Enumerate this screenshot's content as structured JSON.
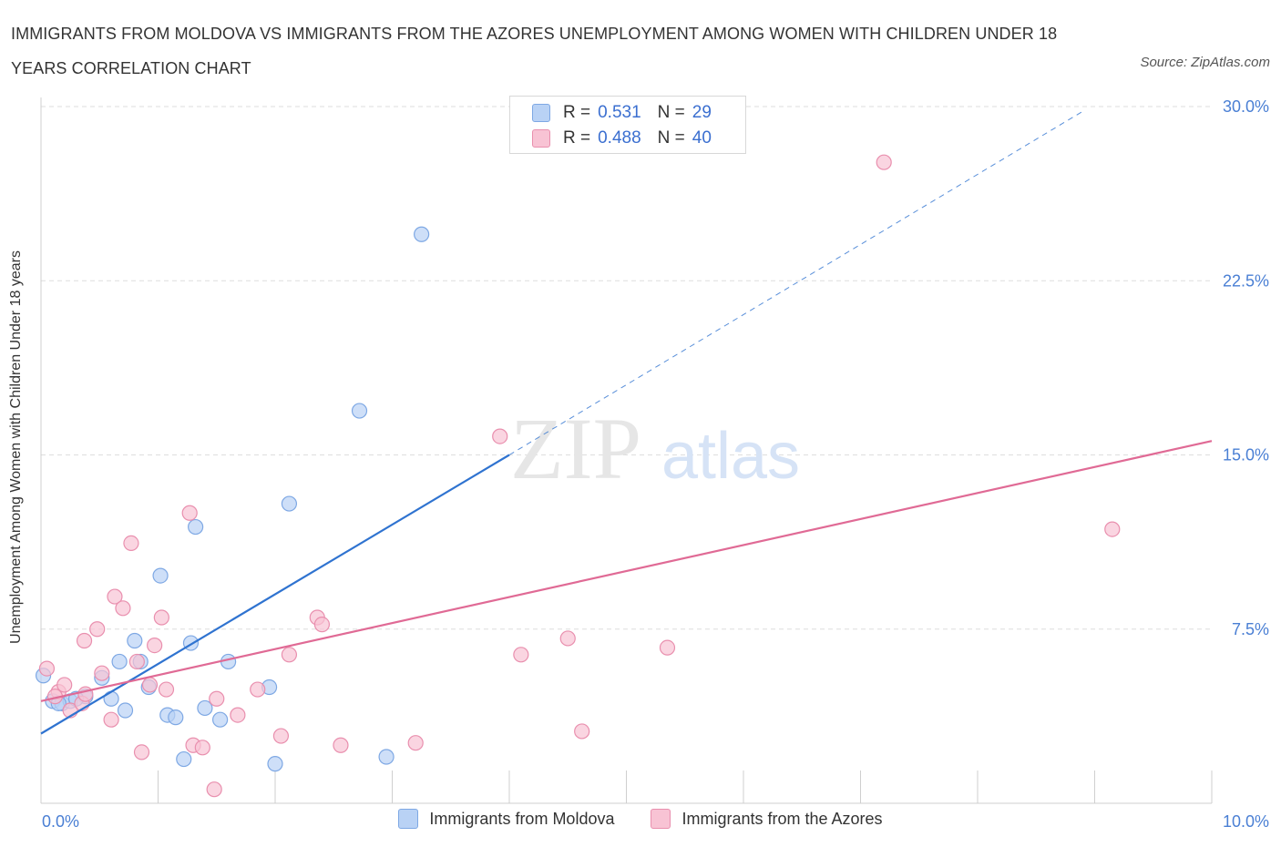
{
  "title": "IMMIGRANTS FROM MOLDOVA VS IMMIGRANTS FROM THE AZORES UNEMPLOYMENT AMONG WOMEN WITH CHILDREN UNDER 18 YEARS CORRELATION CHART",
  "source": "Source: ZipAtlas.com",
  "watermark": {
    "zip": "ZIP",
    "atlas": "atlas"
  },
  "colors": {
    "moldova_fill": "#b9d2f5",
    "moldova_stroke": "#7ea8e4",
    "moldova_line": "#2f73d0",
    "azores_fill": "#f8c3d4",
    "azores_stroke": "#e98fae",
    "azores_line": "#e06a95",
    "grid": "#dedede",
    "tick_label": "#4a7fd4"
  },
  "legend": {
    "rows": [
      {
        "r_label": "R =",
        "r_value": "0.531",
        "n_label": "N =",
        "n_value": "29"
      },
      {
        "r_label": "R =",
        "r_value": "0.488",
        "n_label": "N =",
        "n_value": "40"
      }
    ],
    "bottom": [
      "Immigrants from Moldova",
      "Immigrants from the Azores"
    ]
  },
  "chart_data": {
    "type": "scatter",
    "title": "IMMIGRANTS FROM MOLDOVA VS IMMIGRANTS FROM THE AZORES UNEMPLOYMENT AMONG WOMEN WITH CHILDREN UNDER 18 YEARS CORRELATION CHART",
    "xlabel": "",
    "ylabel": "Unemployment Among Women with Children Under 18 years",
    "xlim": [
      0,
      10
    ],
    "ylim": [
      0,
      30
    ],
    "x_tick_labels": [
      "0.0%",
      "10.0%"
    ],
    "y_ticks": [
      7.5,
      15.0,
      22.5,
      30.0
    ],
    "y_tick_labels": [
      "7.5%",
      "15.0%",
      "22.5%",
      "30.0%"
    ],
    "grid": true,
    "legend_position": "top-center",
    "series": [
      {
        "name": "Immigrants from Moldova",
        "points": [
          [
            0.02,
            5.5
          ],
          [
            0.1,
            4.4
          ],
          [
            0.18,
            4.3
          ],
          [
            0.25,
            4.4
          ],
          [
            0.38,
            4.6
          ],
          [
            0.52,
            5.4
          ],
          [
            0.6,
            4.5
          ],
          [
            0.67,
            6.1
          ],
          [
            0.72,
            4.0
          ],
          [
            0.8,
            7.0
          ],
          [
            0.85,
            6.1
          ],
          [
            0.92,
            5.0
          ],
          [
            1.02,
            9.8
          ],
          [
            1.08,
            3.8
          ],
          [
            1.15,
            3.7
          ],
          [
            1.22,
            1.9
          ],
          [
            1.28,
            6.9
          ],
          [
            1.32,
            11.9
          ],
          [
            1.4,
            4.1
          ],
          [
            1.53,
            3.6
          ],
          [
            1.6,
            6.1
          ],
          [
            1.95,
            5.0
          ],
          [
            2.0,
            1.7
          ],
          [
            2.12,
            12.9
          ],
          [
            2.72,
            16.9
          ],
          [
            2.95,
            2.0
          ],
          [
            3.25,
            24.5
          ],
          [
            0.3,
            4.5
          ],
          [
            0.15,
            4.3
          ]
        ],
        "trend": {
          "x0": 0.0,
          "y0": 3.0,
          "x1": 4.0,
          "y1": 15.0,
          "dash_to_x": 8.9,
          "dash_to_y": 29.8
        }
      },
      {
        "name": "Immigrants from the Azores",
        "points": [
          [
            0.05,
            5.8
          ],
          [
            0.15,
            4.8
          ],
          [
            0.2,
            5.1
          ],
          [
            0.25,
            4.0
          ],
          [
            0.35,
            4.3
          ],
          [
            0.38,
            4.7
          ],
          [
            0.37,
            7.0
          ],
          [
            0.48,
            7.5
          ],
          [
            0.52,
            5.6
          ],
          [
            0.6,
            3.6
          ],
          [
            0.63,
            8.9
          ],
          [
            0.7,
            8.4
          ],
          [
            0.77,
            11.2
          ],
          [
            0.82,
            6.1
          ],
          [
            0.86,
            2.2
          ],
          [
            0.93,
            5.1
          ],
          [
            0.97,
            6.8
          ],
          [
            1.03,
            8.0
          ],
          [
            1.07,
            4.9
          ],
          [
            1.27,
            12.5
          ],
          [
            1.3,
            2.5
          ],
          [
            1.38,
            2.4
          ],
          [
            1.48,
            0.6
          ],
          [
            1.5,
            4.5
          ],
          [
            1.68,
            3.8
          ],
          [
            1.85,
            4.9
          ],
          [
            2.05,
            2.9
          ],
          [
            2.12,
            6.4
          ],
          [
            2.36,
            8.0
          ],
          [
            2.4,
            7.7
          ],
          [
            2.56,
            2.5
          ],
          [
            3.2,
            2.6
          ],
          [
            3.92,
            15.8
          ],
          [
            4.1,
            6.4
          ],
          [
            4.5,
            7.1
          ],
          [
            4.62,
            3.1
          ],
          [
            5.35,
            6.7
          ],
          [
            7.2,
            27.6
          ],
          [
            9.15,
            11.8
          ],
          [
            0.12,
            4.6
          ]
        ],
        "trend": {
          "x0": 0.0,
          "y0": 4.4,
          "x1": 10.0,
          "y1": 15.6
        }
      }
    ]
  }
}
